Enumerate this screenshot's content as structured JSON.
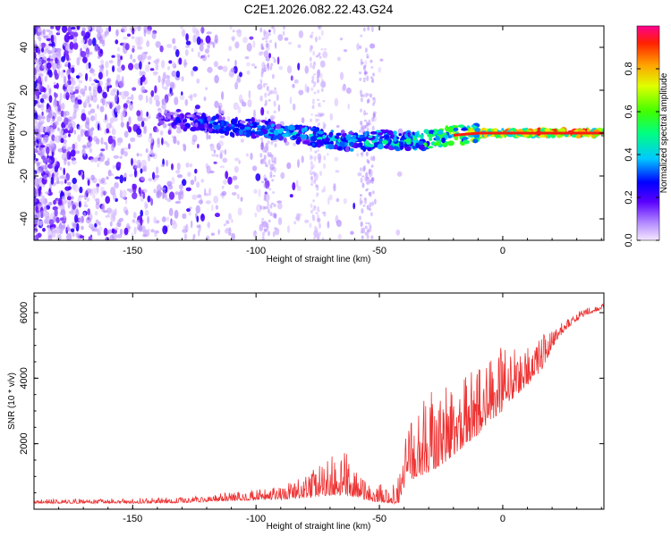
{
  "title": "C2E1.2026.082.22.43.G24",
  "chart_data": [
    {
      "type": "heatmap",
      "name": "spectrogram",
      "xlabel": "Height of straight line (km)",
      "ylabel": "Frequency (Hz)",
      "xlim": [
        -190,
        41
      ],
      "ylim": [
        -50,
        50
      ],
      "xticks": [
        -150,
        -100,
        -50,
        0
      ],
      "xtick_labels": [
        "-150",
        "-100",
        "-50",
        "0"
      ],
      "yticks": [
        -40,
        -20,
        0,
        20,
        40
      ],
      "ytick_labels": [
        "-40",
        "-20",
        "0",
        "20",
        "40"
      ],
      "ridge": {
        "x": [
          -140,
          -130,
          -120,
          -110,
          -100,
          -90,
          -80,
          -70,
          -60,
          -50,
          -40,
          -30,
          -20,
          -10,
          0,
          10,
          20,
          30,
          40
        ],
        "y": [
          7,
          6,
          5,
          3,
          2,
          1,
          -1,
          -3,
          -4,
          -3,
          -4,
          -3,
          -1,
          0,
          0,
          0,
          0,
          0,
          0
        ],
        "amplitude": [
          0.25,
          0.3,
          0.35,
          0.38,
          0.4,
          0.42,
          0.45,
          0.48,
          0.5,
          0.5,
          0.55,
          0.62,
          0.72,
          0.8,
          0.88,
          0.92,
          0.94,
          0.95,
          0.95
        ]
      },
      "colorbar": {
        "label": "Normalized spectral amplitude",
        "range": [
          0,
          1
        ],
        "ticks": [
          0.0,
          0.2,
          0.4,
          0.6,
          0.8
        ],
        "tick_labels": [
          "0.0",
          "0.2",
          "0.4",
          "0.6",
          "0.8"
        ]
      }
    },
    {
      "type": "line",
      "name": "snr",
      "xlabel": "Height of straight line (km)",
      "ylabel": "SNR (10 * v/v)",
      "xlim": [
        -190,
        41
      ],
      "ylim": [
        0,
        6600
      ],
      "xticks": [
        -150,
        -100,
        -50,
        0
      ],
      "xtick_labels": [
        "-150",
        "-100",
        "-50",
        "0"
      ],
      "yticks": [
        2000,
        4000,
        6000
      ],
      "ytick_labels": [
        "2000",
        "4000",
        "6000"
      ],
      "color": "#ee3333",
      "envelope": {
        "x": [
          -190,
          -160,
          -130,
          -110,
          -90,
          -80,
          -70,
          -65,
          -60,
          -55,
          -50,
          -45,
          -42,
          -40,
          -35,
          -30,
          -25,
          -20,
          -15,
          -10,
          -5,
          0,
          5,
          10,
          15,
          20,
          25,
          30,
          35,
          41
        ],
        "base": [
          200,
          200,
          220,
          300,
          350,
          450,
          600,
          650,
          500,
          350,
          300,
          250,
          300,
          900,
          1300,
          1500,
          1700,
          2000,
          2300,
          2600,
          3000,
          3300,
          3700,
          4000,
          4300,
          5000,
          5500,
          5800,
          6000,
          6150
        ],
        "spread": [
          120,
          140,
          180,
          250,
          400,
          700,
          1200,
          1500,
          900,
          500,
          600,
          500,
          900,
          1600,
          2200,
          2500,
          2400,
          2400,
          2200,
          2200,
          2000,
          2000,
          1600,
          1400,
          1200,
          500,
          350,
          250,
          200,
          150
        ]
      }
    }
  ]
}
